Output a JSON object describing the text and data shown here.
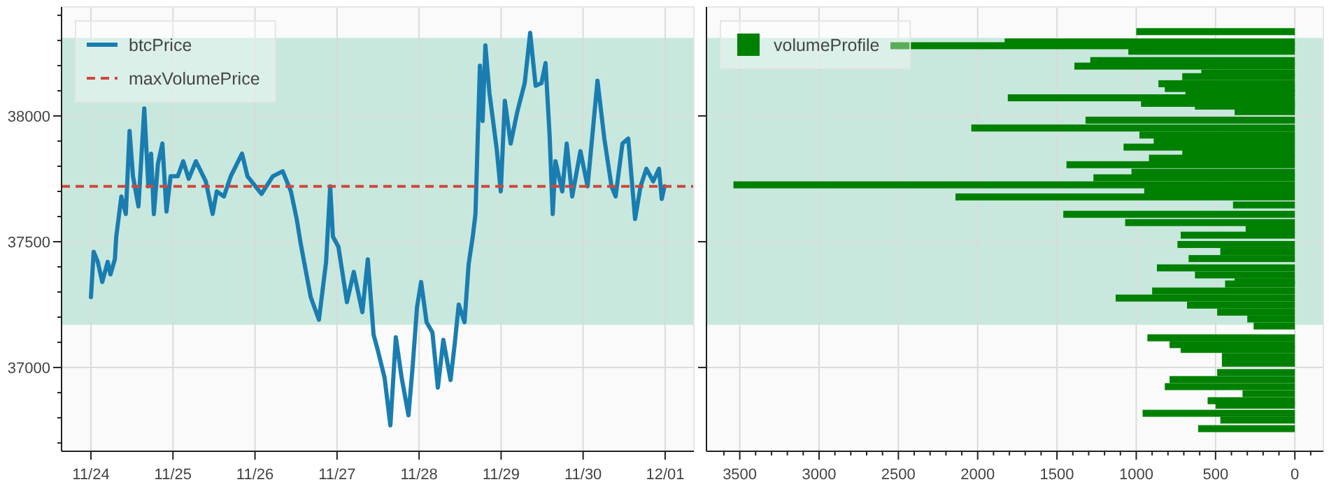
{
  "chart_data": [
    {
      "type": "line",
      "x": [
        "--11-24T00:00",
        "--11-24T00:48",
        "--11-24T02:00",
        "--11-24T03:18",
        "--11-24T04:54",
        "--11-24T05:42",
        "--11-24T07:00",
        "--11-24T07:24",
        "--11-24T08:54",
        "--11-24T10:12",
        "--11-24T11:18",
        "--11-24T12:18",
        "--11-24T13:54",
        "--11-24T15:36",
        "--11-24T16:48",
        "--11-24T17:36",
        "--11-24T18:24",
        "--11-24T19:36",
        "--11-24T20:54",
        "--11-24T22:06",
        "--11-24T23:18",
        "--11-25T01:24",
        "--11-25T03:00",
        "--11-25T04:36",
        "--11-25T06:42",
        "--11-25T09:36",
        "--11-25T11:36",
        "--11-25T12:48",
        "--11-25T14:54",
        "--11-25T16:54",
        "--11-25T20:12",
        "--11-25T21:48",
        "--11-26T01:54",
        "--11-26T05:12",
        "--11-26T08:06",
        "--11-26T10:30",
        "--11-26T12:12",
        "--11-26T13:24",
        "--11-26T16:18",
        "--11-26T18:42",
        "--11-26T20:48",
        "--11-26T22:00",
        "--11-26T22:48",
        "--11-27T00:24",
        "--11-27T02:54",
        "--11-27T04:54",
        "--11-27T07:24",
        "--11-27T09:00",
        "--11-27T10:42",
        "--11-27T11:54",
        "--11-27T13:54",
        "--11-27T15:36",
        "--11-27T17:12",
        "--11-27T18:54",
        "--11-27T20:54",
        "--11-27T22:06",
        "--11-27T23:24",
        "--11-28T00:36",
        "--11-28T02:12",
        "--11-28T03:54",
        "--11-28T05:30",
        "--11-28T07:06",
        "--11-28T09:12",
        "--11-28T10:24",
        "--11-28T11:36",
        "--11-28T13:18",
        "--11-28T14:30",
        "--11-28T15:42",
        "--11-28T16:30",
        "--11-28T17:48",
        "--11-28T18:36",
        "--11-28T19:24",
        "--11-28T20:36",
        "--11-28T22:42",
        "--11-28T23:54",
        "--11-29T01:06",
        "--11-29T02:48",
        "--11-29T04:48",
        "--11-29T06:54",
        "--11-29T08:30",
        "--11-29T10:06",
        "--11-29T11:48",
        "--11-29T13:00",
        "--11-29T14:12",
        "--11-29T15:06",
        "--11-29T15:54",
        "--11-29T17:54",
        "--11-29T19:12",
        "--11-29T20:48",
        "--11-29T23:12",
        "--11-30T01:18",
        "--11-30T04:12",
        "--11-30T06:12",
        "--11-30T08:18",
        "--11-30T09:30",
        "--11-30T11:30",
        "--11-30T13:12",
        "--11-30T15:12",
        "--11-30T16:48",
        "--11-30T18:30",
        "--11-30T20:30",
        "--11-30T22:12",
        "--11-30T23:00",
        "--11-30T23:48"
      ],
      "series": [
        {
          "name": "btcPrice",
          "color": "#1a7db0",
          "values": [
            37280,
            37460,
            37420,
            37340,
            37420,
            37370,
            37430,
            37520,
            37680,
            37610,
            37940,
            37760,
            37640,
            38030,
            37720,
            37850,
            37610,
            37810,
            37890,
            37620,
            37760,
            37760,
            37820,
            37750,
            37820,
            37740,
            37610,
            37700,
            37680,
            37760,
            37850,
            37760,
            37690,
            37760,
            37780,
            37700,
            37590,
            37490,
            37280,
            37190,
            37420,
            37720,
            37520,
            37480,
            37260,
            37380,
            37220,
            37430,
            37130,
            37070,
            36960,
            36770,
            37120,
            36960,
            36810,
            37000,
            37240,
            37340,
            37180,
            37140,
            36920,
            37110,
            36950,
            37090,
            37250,
            37180,
            37410,
            37520,
            37610,
            38200,
            37980,
            38280,
            38090,
            37870,
            37700,
            38060,
            37890,
            38020,
            38130,
            38330,
            38120,
            38130,
            38210,
            37920,
            37610,
            37820,
            37700,
            37890,
            37680,
            37860,
            37720,
            38140,
            37910,
            37720,
            37680,
            37890,
            37910,
            37590,
            37720,
            37790,
            37740,
            37790,
            37670,
            37720
          ]
        }
      ],
      "ref_lines": [
        {
          "axis": "y",
          "value": 37720,
          "label": "maxVolumePrice",
          "color": "#d0473a",
          "line_style": "dashed"
        }
      ],
      "bands": [
        {
          "axis": "y",
          "from": 37170,
          "to": 38310,
          "color": "#c8e8de"
        }
      ],
      "xlim": [
        "--11-23T15:24",
        "--12-01T08:24"
      ],
      "xticks": [
        {
          "value": "--11-24",
          "label": "11/24"
        },
        {
          "value": "--11-25",
          "label": "11/25"
        },
        {
          "value": "--11-26",
          "label": "11/26"
        },
        {
          "value": "--11-27",
          "label": "11/27"
        },
        {
          "value": "--11-28",
          "label": "11/28"
        },
        {
          "value": "--11-29",
          "label": "11/29"
        },
        {
          "value": "--11-30",
          "label": "11/30"
        },
        {
          "value": "--12-01",
          "label": "12/01"
        }
      ],
      "ylim": [
        36667,
        38433
      ],
      "yticks": [
        {
          "value": 36700,
          "label": null
        },
        {
          "value": 36800,
          "label": null
        },
        {
          "value": 36900,
          "label": null
        },
        37000,
        {
          "value": 37100,
          "label": null
        },
        {
          "value": 37200,
          "label": null
        },
        {
          "value": 37300,
          "label": null
        },
        {
          "value": 37400,
          "label": null
        },
        37500,
        {
          "value": 37600,
          "label": null
        },
        {
          "value": 37700,
          "label": null
        },
        {
          "value": 37800,
          "label": null
        },
        {
          "value": 37900,
          "label": null
        },
        38000,
        {
          "value": 38100,
          "label": null
        },
        {
          "value": 38200,
          "label": null
        },
        {
          "value": 38300,
          "label": null
        },
        {
          "value": 38400,
          "label": null
        }
      ],
      "grid": true,
      "legend": "top left"
    },
    {
      "type": "bar",
      "orientation": "horizontal",
      "x": [
        38335,
        38294,
        38279,
        38257,
        38220,
        38198,
        38170,
        38156,
        38128,
        38109,
        38094,
        38072,
        38050,
        38039,
        38017,
        37983,
        37952,
        37924,
        37902,
        37876,
        37854,
        37832,
        37806,
        37776,
        37754,
        37726,
        37702,
        37678,
        37646,
        37609,
        37576,
        37550,
        37526,
        37489,
        37461,
        37433,
        37396,
        37368,
        37341,
        37332,
        37304,
        37276,
        37248,
        37220,
        37193,
        37165,
        37118,
        37091,
        37072,
        37044,
        37017,
        36980,
        36952,
        36924,
        36896,
        36868,
        36850,
        36818,
        36791,
        36757
      ],
      "series": [
        {
          "name": "volumeProfile",
          "color": "#008000",
          "values": [
            1000,
            1830,
            2550,
            1050,
            1290,
            1390,
            590,
            710,
            860,
            820,
            690,
            1810,
            970,
            630,
            380,
            1320,
            2040,
            980,
            890,
            1080,
            710,
            920,
            1440,
            1030,
            1270,
            3540,
            950,
            2140,
            390,
            1460,
            1070,
            310,
            720,
            740,
            470,
            670,
            870,
            630,
            380,
            440,
            900,
            1130,
            680,
            490,
            300,
            260,
            930,
            790,
            720,
            460,
            460,
            490,
            790,
            820,
            330,
            550,
            500,
            960,
            470,
            610
          ]
        }
      ],
      "bands": [
        {
          "axis": "y",
          "from": 37170,
          "to": 38310,
          "color": "#c8e8de"
        }
      ],
      "xlim": [
        3710,
        -180
      ],
      "xticks": [
        {
          "value": 3600,
          "label": null
        },
        3500,
        {
          "value": 3400,
          "label": null
        },
        {
          "value": 3300,
          "label": null
        },
        {
          "value": 3200,
          "label": null
        },
        {
          "value": 3100,
          "label": null
        },
        3000,
        {
          "value": 2900,
          "label": null
        },
        {
          "value": 2800,
          "label": null
        },
        {
          "value": 2700,
          "label": null
        },
        {
          "value": 2600,
          "label": null
        },
        2500,
        {
          "value": 2400,
          "label": null
        },
        {
          "value": 2300,
          "label": null
        },
        {
          "value": 2200,
          "label": null
        },
        {
          "value": 2100,
          "label": null
        },
        2000,
        {
          "value": 1900,
          "label": null
        },
        {
          "value": 1800,
          "label": null
        },
        {
          "value": 1700,
          "label": null
        },
        {
          "value": 1600,
          "label": null
        },
        1500,
        {
          "value": 1400,
          "label": null
        },
        {
          "value": 1300,
          "label": null
        },
        {
          "value": 1200,
          "label": null
        },
        {
          "value": 1100,
          "label": null
        },
        1000,
        {
          "value": 900,
          "label": null
        },
        {
          "value": 800,
          "label": null
        },
        {
          "value": 700,
          "label": null
        },
        {
          "value": 600,
          "label": null
        },
        500,
        {
          "value": 400,
          "label": null
        },
        {
          "value": 300,
          "label": null
        },
        {
          "value": 200,
          "label": null
        },
        {
          "value": 100,
          "label": null
        },
        0,
        {
          "value": -100,
          "label": null
        }
      ],
      "ylim": [
        36667,
        38433
      ],
      "yticks": [
        37000,
        37500,
        38000
      ],
      "tick_labels": "x",
      "grid": true,
      "legend": "top left"
    }
  ]
}
